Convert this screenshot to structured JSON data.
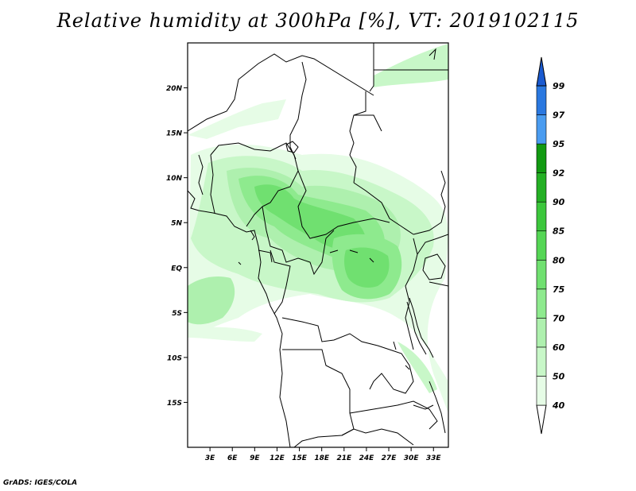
{
  "title": "Relative humidity at 300hPa [%], VT: 2019102115",
  "credit": "GrADS: IGES/COLA",
  "map": {
    "lat_labels": [
      "20N",
      "15N",
      "10N",
      "5N",
      "EQ",
      "5S",
      "10S",
      "15S"
    ],
    "lat_values": [
      20,
      15,
      10,
      5,
      0,
      -5,
      -10,
      -15
    ],
    "lon_labels": [
      "3E",
      "6E",
      "9E",
      "12E",
      "15E",
      "18E",
      "21E",
      "24E",
      "27E",
      "30E",
      "33E"
    ],
    "lon_values": [
      3,
      6,
      9,
      12,
      15,
      18,
      21,
      24,
      27,
      30,
      33
    ],
    "lon_range": [
      0,
      35
    ],
    "lat_range": [
      -20,
      25
    ]
  },
  "colorbar": {
    "labels": [
      "40",
      "50",
      "60",
      "70",
      "75",
      "80",
      "85",
      "90",
      "92",
      "95",
      "97",
      "99"
    ],
    "colors": [
      "#ffffff",
      "#e6fce6",
      "#c8f7c8",
      "#aef0ae",
      "#8eea8e",
      "#70e070",
      "#55d655",
      "#3cc73c",
      "#24b024",
      "#129a12",
      "#4a9cf0",
      "#2a78e0",
      "#1a5ad0"
    ]
  }
}
